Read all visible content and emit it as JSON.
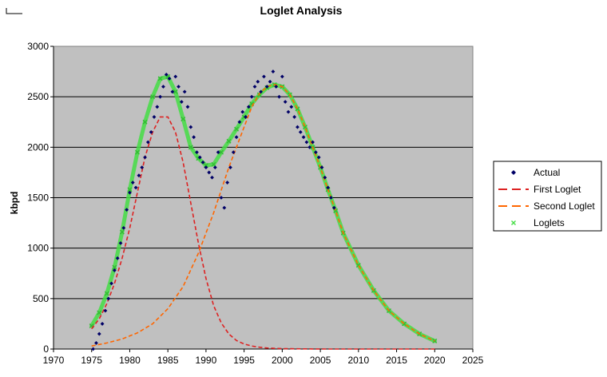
{
  "chart_data": {
    "type": "scatter",
    "title": "Loglet Analysis",
    "xlabel": "",
    "ylabel": "kbpd",
    "xlim": [
      1970,
      2025
    ],
    "ylim": [
      0,
      3000
    ],
    "x_ticks": [
      "1970",
      "1975",
      "1980",
      "1985",
      "1990",
      "1995",
      "2000",
      "2005",
      "2010",
      "2015",
      "2020",
      "2025"
    ],
    "y_ticks": [
      "0",
      "500",
      "1000",
      "1500",
      "2000",
      "2500",
      "3000"
    ],
    "grid": "horizontal",
    "legend_position": "right",
    "series": [
      {
        "name": "Actual",
        "style": "diamond-markers",
        "color": "#000066",
        "x": [
          1975.2,
          1975.6,
          1976.0,
          1976.4,
          1976.8,
          1977.2,
          1977.6,
          1978.0,
          1978.4,
          1978.8,
          1979.2,
          1979.6,
          1980.0,
          1980.4,
          1980.8,
          1981.2,
          1981.6,
          1982.0,
          1982.4,
          1982.8,
          1983.2,
          1983.6,
          1984.0,
          1984.4,
          1984.8,
          1985.2,
          1985.6,
          1986.0,
          1986.4,
          1986.8,
          1987.2,
          1987.6,
          1988.0,
          1988.4,
          1988.8,
          1989.2,
          1989.6,
          1990.0,
          1990.4,
          1990.8,
          1991.2,
          1991.6,
          1992.0,
          1992.4,
          1992.8,
          1993.2,
          1993.6,
          1994.0,
          1994.4,
          1994.8,
          1995.2,
          1995.6,
          1996.0,
          1996.4,
          1996.8,
          1997.2,
          1997.6,
          1998.0,
          1998.4,
          1998.8,
          1999.2,
          1999.6,
          2000.0,
          2000.4,
          2000.8,
          2001.2,
          2001.6,
          2002.0,
          2002.4,
          2002.8,
          2003.2,
          2003.6,
          2004.0,
          2004.4,
          2004.8,
          2005.2,
          2005.6,
          2006.0,
          2006.4,
          2006.8
        ],
        "y": [
          0,
          60,
          150,
          250,
          380,
          500,
          650,
          780,
          900,
          1050,
          1200,
          1380,
          1550,
          1650,
          1600,
          1720,
          1800,
          1900,
          2050,
          2150,
          2300,
          2400,
          2500,
          2600,
          2720,
          2680,
          2550,
          2700,
          2600,
          2450,
          2550,
          2400,
          2200,
          2100,
          1950,
          1900,
          1850,
          1800,
          1750,
          1700,
          1800,
          1950,
          1500,
          1400,
          1650,
          1800,
          1950,
          2100,
          2250,
          2350,
          2300,
          2400,
          2500,
          2600,
          2650,
          2550,
          2700,
          2600,
          2650,
          2750,
          2600,
          2500,
          2700,
          2450,
          2350,
          2400,
          2300,
          2200,
          2150,
          2100,
          2050,
          2000,
          2050,
          1950,
          1900,
          1800,
          1700,
          1600,
          1500,
          1400
        ]
      },
      {
        "name": "First Loglet",
        "style": "dashed",
        "color": "#dd2222",
        "x": [
          1975,
          1976,
          1977,
          1978,
          1979,
          1980,
          1981,
          1982,
          1983,
          1984,
          1985,
          1986,
          1987,
          1988,
          1989,
          1990,
          1991,
          1992,
          1993,
          1994,
          1995,
          1996,
          1997,
          1998,
          1999,
          2000,
          2002,
          2004,
          2006,
          2010,
          2015,
          2020
        ],
        "y": [
          200,
          300,
          450,
          650,
          900,
          1200,
          1550,
          1900,
          2150,
          2300,
          2300,
          2150,
          1850,
          1450,
          1050,
          700,
          430,
          260,
          150,
          85,
          50,
          30,
          18,
          10,
          6,
          4,
          2,
          1,
          0,
          0,
          0,
          0
        ]
      },
      {
        "name": "Second Loglet",
        "style": "dashed",
        "color": "#ff6600",
        "x": [
          1975,
          1977,
          1979,
          1981,
          1983,
          1985,
          1987,
          1989,
          1991,
          1993,
          1995,
          1996,
          1997,
          1998,
          1999,
          2000,
          2001,
          2002,
          2003,
          2004,
          2005,
          2006,
          2007,
          2008,
          2010,
          2012,
          2014,
          2016,
          2018,
          2020
        ],
        "y": [
          30,
          60,
          100,
          160,
          250,
          400,
          620,
          950,
          1350,
          1800,
          2200,
          2400,
          2530,
          2600,
          2620,
          2600,
          2520,
          2380,
          2200,
          2000,
          1800,
          1580,
          1370,
          1150,
          830,
          580,
          380,
          250,
          150,
          80
        ]
      },
      {
        "name": "Loglets",
        "style": "x-markers",
        "color": "#44dd44",
        "x": [
          1975,
          1976,
          1977,
          1978,
          1979,
          1980,
          1981,
          1982,
          1983,
          1984,
          1985,
          1986,
          1987,
          1988,
          1989,
          1990,
          1991,
          1992,
          1993,
          1994,
          1995,
          1996,
          1997,
          1998,
          1999,
          2000,
          2001,
          2002,
          2003,
          2004,
          2005,
          2006,
          2007,
          2008,
          2010,
          2012,
          2014,
          2016,
          2018,
          2020
        ],
        "y": [
          230,
          360,
          550,
          810,
          1160,
          1580,
          1950,
          2250,
          2500,
          2680,
          2700,
          2550,
          2280,
          2000,
          1890,
          1820,
          1830,
          1950,
          2060,
          2180,
          2300,
          2430,
          2520,
          2590,
          2620,
          2600,
          2520,
          2380,
          2200,
          2000,
          1800,
          1580,
          1370,
          1150,
          830,
          580,
          380,
          250,
          150,
          80
        ]
      }
    ]
  }
}
